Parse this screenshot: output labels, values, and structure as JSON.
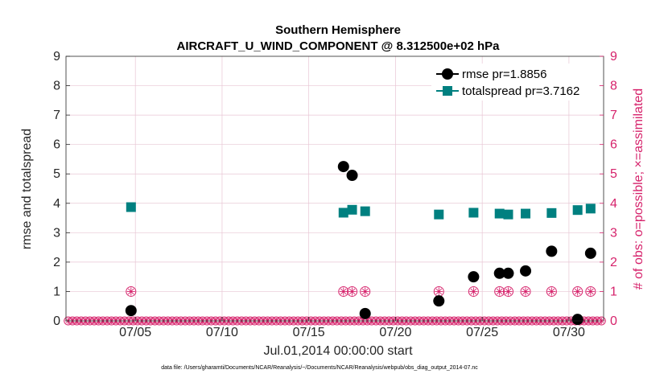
{
  "chart_data": {
    "type": "scatter",
    "title": "Southern Hemisphere",
    "subtitle": "AIRCRAFT_U_WIND_COMPONENT @ 8.312500e+02 hPa",
    "xlabel": "Jul.01,2014 00:00:00 start",
    "ylabel": "rmse and totalspread",
    "ylabel_right": "# of obs: o=possible; ×=assimilated",
    "xlim": [
      1.0,
      32.0
    ],
    "ylim": [
      0,
      9
    ],
    "ylim_right": [
      0,
      9
    ],
    "x_ticks": [
      5,
      10,
      15,
      20,
      25,
      30
    ],
    "x_tick_labels": [
      "07/05",
      "07/10",
      "07/15",
      "07/20",
      "07/25",
      "07/30"
    ],
    "y_ticks": [
      0,
      1,
      2,
      3,
      4,
      5,
      6,
      7,
      8,
      9
    ],
    "y_tick_labels": [
      "0",
      "1",
      "2",
      "3",
      "4",
      "5",
      "6",
      "7",
      "8",
      "9"
    ],
    "y_right_ticks": [
      0,
      1,
      2,
      3,
      4,
      5,
      6,
      7,
      8,
      9
    ],
    "y_right_tick_labels": [
      "0",
      "1",
      "2",
      "3",
      "4",
      "5",
      "6",
      "7",
      "8",
      "9"
    ],
    "grid": true,
    "legend_position": "top-right",
    "series": [
      {
        "name": "rmse pr=1.8856",
        "color": "#000000",
        "marker": "circle",
        "x": [
          4.75,
          17.0,
          17.5,
          18.25,
          22.5,
          24.5,
          26.0,
          26.5,
          27.5,
          29.0,
          30.5,
          31.25
        ],
        "y": [
          0.35,
          5.25,
          4.95,
          0.25,
          0.68,
          1.5,
          1.62,
          1.62,
          1.7,
          2.37,
          0.05,
          2.3
        ]
      },
      {
        "name": "totalspread pr=3.7162",
        "color": "#008080",
        "marker": "square",
        "x": [
          4.75,
          17.0,
          17.5,
          18.25,
          22.5,
          24.5,
          26.0,
          26.5,
          27.5,
          29.0,
          30.5,
          31.25
        ],
        "y": [
          3.87,
          3.68,
          3.78,
          3.73,
          3.62,
          3.68,
          3.65,
          3.62,
          3.65,
          3.67,
          3.77,
          3.82
        ]
      },
      {
        "name": "obs possible",
        "color": "#d6226b",
        "marker": "open-circle",
        "axis": "right",
        "x": [
          4.75,
          17.0,
          17.5,
          18.25,
          22.5,
          24.5,
          26.0,
          26.5,
          27.5,
          29.0,
          30.5,
          31.25
        ],
        "y": [
          1,
          1,
          1,
          1,
          1,
          1,
          1,
          1,
          1,
          1,
          1,
          1
        ]
      },
      {
        "name": "obs assimilated",
        "color": "#d6226b",
        "marker": "asterisk",
        "axis": "right",
        "x": [
          4.75,
          17.0,
          17.5,
          18.25,
          22.5,
          24.5,
          26.0,
          26.5,
          27.5,
          29.0,
          30.5,
          31.25
        ],
        "y": [
          1,
          1,
          1,
          1,
          1,
          1,
          1,
          1,
          1,
          1,
          1,
          1
        ]
      }
    ],
    "zero_obs_spacing_days": 0.25,
    "zero_obs_value": 0
  },
  "legend": {
    "rmse_label": "rmse pr=1.8856",
    "spread_label": "totalspread pr=3.7162"
  },
  "footnote": "data file: /Users/gharamti/Documents/NCAR/Reanalysis/~/Documents/NCAR/Reanalysis/webpub/obs_diag_output_2014-07.nc"
}
